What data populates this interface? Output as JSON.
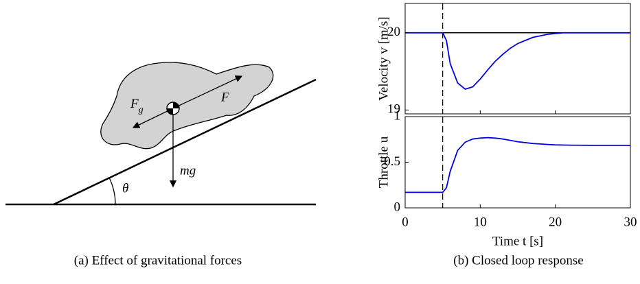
{
  "diagram": {
    "force": "F",
    "gravity": "F",
    "gravity_sub": "g",
    "weight": "mg",
    "angle": "θ",
    "caption": "(a) Effect of gravitational forces"
  },
  "caption_b": "(b) Closed loop response",
  "chart_data": [
    {
      "type": "line",
      "y_label": "Velocity v [m/s]",
      "x": [
        0,
        1,
        2,
        3,
        4,
        5,
        5.5,
        6,
        7,
        8,
        9,
        10,
        11,
        12,
        13,
        14,
        15,
        16,
        17,
        18,
        19,
        20,
        21,
        22,
        25,
        30
      ],
      "series": [
        {
          "color": "#0000e0",
          "values": [
            20,
            20,
            20,
            20,
            20,
            20,
            19.9,
            19.6,
            19.35,
            19.27,
            19.3,
            19.4,
            19.52,
            19.63,
            19.72,
            19.8,
            19.86,
            19.9,
            19.94,
            19.96,
            19.98,
            19.99,
            20,
            20,
            20,
            20
          ]
        },
        {
          "color": "#000000",
          "values": [
            20,
            20,
            20,
            20,
            20,
            20,
            20,
            20,
            20,
            20,
            20,
            20,
            20,
            20,
            20,
            20,
            20,
            20,
            20,
            20,
            20,
            20,
            20,
            20,
            20,
            20
          ]
        }
      ],
      "vlines": [
        5
      ],
      "xlim": [
        0,
        30
      ],
      "xticks": [
        0,
        10,
        20,
        30
      ],
      "ylim": [
        18.95,
        20.38
      ],
      "yticks": [
        19,
        20
      ]
    },
    {
      "type": "line",
      "y_label": "Throttle u",
      "x_label": "Time t [s]",
      "x": [
        0,
        1,
        2,
        3,
        4,
        5,
        5.5,
        6,
        7,
        8,
        9,
        10,
        11,
        12,
        13,
        14,
        15,
        16,
        17,
        18,
        19,
        20,
        22,
        25,
        30
      ],
      "series": [
        {
          "color": "#0000e0",
          "values": [
            0.17,
            0.17,
            0.17,
            0.17,
            0.17,
            0.17,
            0.22,
            0.4,
            0.63,
            0.72,
            0.755,
            0.765,
            0.77,
            0.765,
            0.755,
            0.74,
            0.725,
            0.715,
            0.705,
            0.7,
            0.695,
            0.69,
            0.687,
            0.685,
            0.685
          ]
        }
      ],
      "vlines": [
        5
      ],
      "xlim": [
        0,
        30
      ],
      "xticks": [
        0,
        10,
        20,
        30
      ],
      "ylim": [
        0,
        1
      ],
      "yticks": [
        0,
        0.5,
        1
      ]
    }
  ]
}
